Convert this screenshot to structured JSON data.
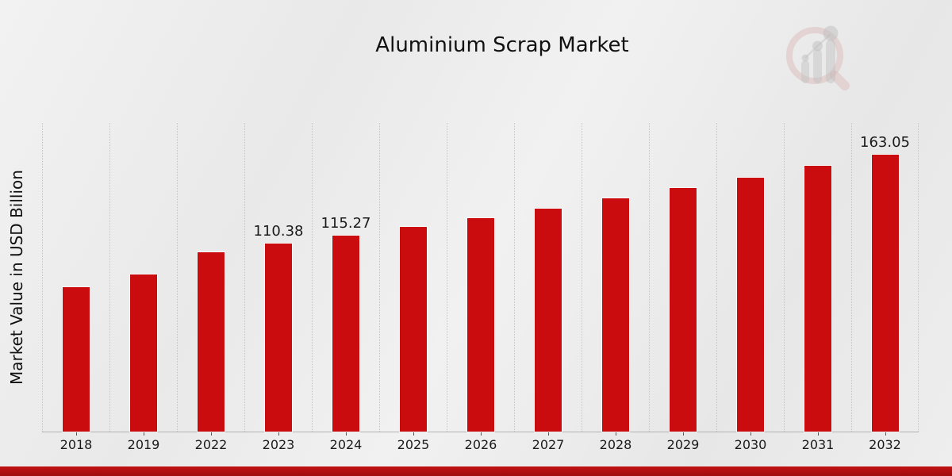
{
  "page": {
    "watermark_logo": "market-research-future-magnifier-bars-logo",
    "footer_stripe_color": "#b30d0d"
  },
  "chart_data": {
    "type": "bar",
    "title": "Aluminium Scrap Market",
    "xlabel": "",
    "ylabel": "Market Value in USD Billion",
    "categories": [
      "2018",
      "2019",
      "2022",
      "2023",
      "2024",
      "2025",
      "2026",
      "2027",
      "2028",
      "2029",
      "2030",
      "2031",
      "2032"
    ],
    "values": [
      84.7,
      92.6,
      105.6,
      110.38,
      115.27,
      120.38,
      125.71,
      131.28,
      137.1,
      143.17,
      149.52,
      156.14,
      163.05
    ],
    "data_labels": [
      "",
      "",
      "",
      "110.38",
      "115.27",
      "",
      "",
      "",
      "",
      "",
      "",
      "",
      "163.05"
    ],
    "bar_color": "#cb0c0e",
    "label_color": "#1a1a1a",
    "ylim": [
      0,
      181.5
    ],
    "grid": "vertical-dotted",
    "legend": "none"
  }
}
